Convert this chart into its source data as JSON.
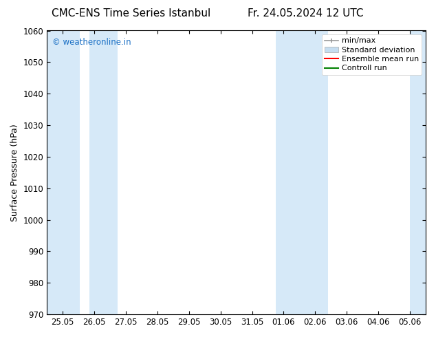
{
  "title_left": "CMC-ENS Time Series Istanbul",
  "title_right": "Fr. 24.05.2024 12 UTC",
  "ylabel": "Surface Pressure (hPa)",
  "ylim": [
    970,
    1060
  ],
  "yticks": [
    970,
    980,
    990,
    1000,
    1010,
    1020,
    1030,
    1040,
    1050,
    1060
  ],
  "xtick_labels": [
    "25.05",
    "26.05",
    "27.05",
    "28.05",
    "29.05",
    "30.05",
    "31.05",
    "01.06",
    "02.06",
    "03.06",
    "04.06",
    "05.06"
  ],
  "band_color": "#d6e9f8",
  "watermark": "© weatheronline.in",
  "watermark_color": "#1a6fc4",
  "legend_entries": [
    "min/max",
    "Standard deviation",
    "Ensemble mean run",
    "Controll run"
  ],
  "minmax_color": "#999999",
  "std_color": "#c5ddf0",
  "ens_color": "#ff0000",
  "ctrl_color": "#008000",
  "background_color": "#ffffff",
  "title_fontsize": 11,
  "axis_fontsize": 9,
  "tick_fontsize": 8.5,
  "legend_fontsize": 8
}
